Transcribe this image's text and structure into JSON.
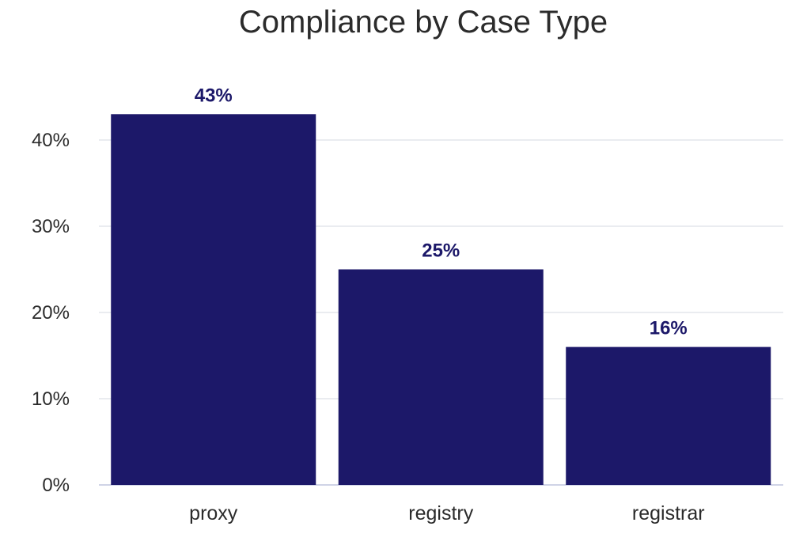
{
  "chart_data": {
    "type": "bar",
    "title": "Compliance by Case Type",
    "xlabel": "",
    "ylabel": "",
    "categories": [
      "proxy",
      "registry",
      "registrar"
    ],
    "values": [
      43,
      25,
      16
    ],
    "data_labels": [
      "43%",
      "25%",
      "16%"
    ],
    "ylim": [
      0,
      45
    ],
    "yticks": [
      0,
      10,
      20,
      30,
      40
    ],
    "ytick_labels": [
      "0%",
      "10%",
      "20%",
      "30%",
      "40%"
    ],
    "grid": true,
    "legend": "none",
    "colors": {
      "bar": "#1c1869",
      "data_label": "#1c1869",
      "grid": "#e4e6ec"
    }
  }
}
